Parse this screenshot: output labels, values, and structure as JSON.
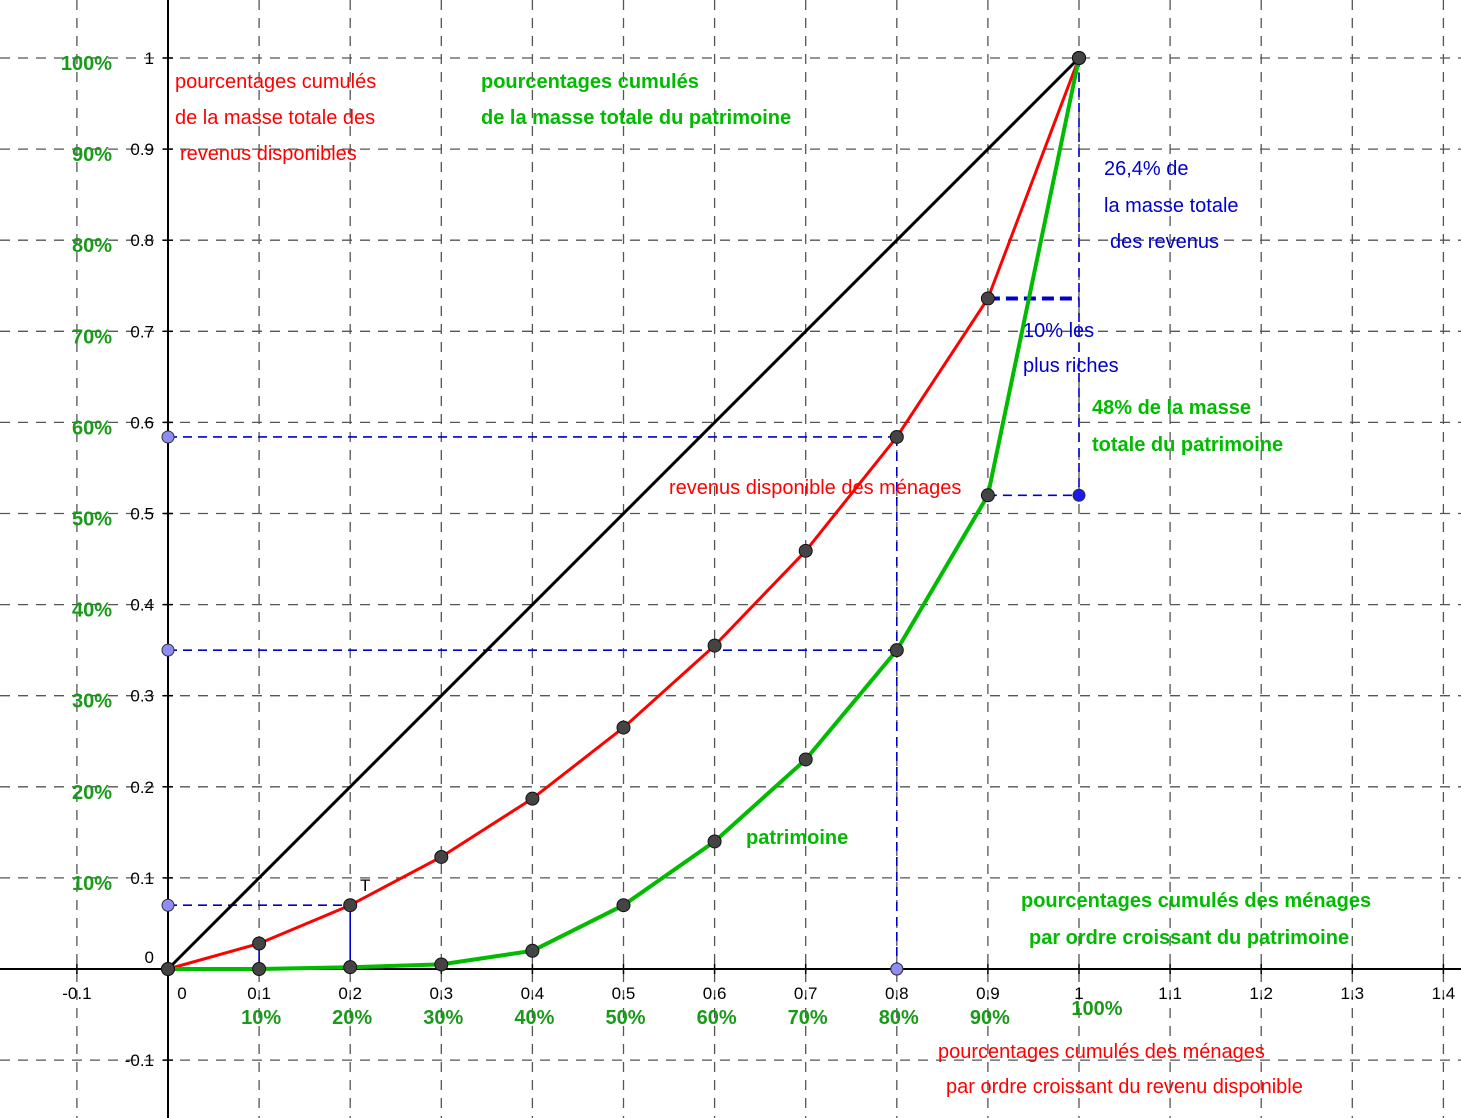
{
  "chart_data": {
    "type": "line",
    "xlim": [
      -0.1,
      1.4
    ],
    "ylim": [
      -0.1,
      1.0
    ],
    "grid": true,
    "x_ticks": [
      "-0.1",
      "0",
      "0.1",
      "0.2",
      "0.3",
      "0.4",
      "0.5",
      "0.6",
      "0.7",
      "0.8",
      "0.9",
      "1",
      "1.1",
      "1.2",
      "1.3",
      "1.4"
    ],
    "x_tick_values": [
      -0.1,
      0,
      0.1,
      0.2,
      0.3,
      0.4,
      0.5,
      0.6,
      0.7,
      0.8,
      0.9,
      1,
      1.1,
      1.2,
      1.3,
      1.4
    ],
    "y_ticks": [
      "-0.1",
      "0",
      "0.1",
      "0.2",
      "0.3",
      "0.4",
      "0.5",
      "0.6",
      "0.7",
      "0.8",
      "0.9",
      "1"
    ],
    "y_tick_values": [
      -0.1,
      0,
      0.1,
      0.2,
      0.3,
      0.4,
      0.5,
      0.6,
      0.7,
      0.8,
      0.9,
      1
    ],
    "x_pct_labels": [
      "10%",
      "20%",
      "30%",
      "40%",
      "50%",
      "60%",
      "70%",
      "80%",
      "90%",
      "100%"
    ],
    "y_pct_labels": [
      "10%",
      "20%",
      "30%",
      "40%",
      "50%",
      "60%",
      "70%",
      "80%",
      "90%",
      "100%"
    ],
    "series": [
      {
        "name": "",
        "color": "#000000",
        "x": [
          0,
          1
        ],
        "y": [
          0,
          1
        ]
      },
      {
        "name": "revenus disponible des ménages",
        "color": "#ff0000",
        "x": [
          0,
          0.1,
          0.2,
          0.3,
          0.4,
          0.5,
          0.6,
          0.7,
          0.8,
          0.9,
          1
        ],
        "y": [
          0,
          0.028,
          0.07,
          0.123,
          0.187,
          0.265,
          0.355,
          0.459,
          0.584,
          0.736,
          1
        ]
      },
      {
        "name": "patrimoine",
        "color": "#00bb00",
        "x": [
          0,
          0.1,
          0.2,
          0.3,
          0.4,
          0.5,
          0.6,
          0.7,
          0.8,
          0.9,
          1
        ],
        "y": [
          0,
          0.0,
          0.002,
          0.005,
          0.02,
          0.07,
          0.14,
          0.23,
          0.35,
          0.52,
          1
        ]
      }
    ],
    "guides": {
      "color": "#0000cc",
      "revenue_80pct": 0.584,
      "patrimoine_80pct": 0.35,
      "revenue_20pct": 0.07,
      "top10_revenue_start": 0.736,
      "top10_patrimoine_start": 0.52
    },
    "annotations": {
      "cum_revenus": [
        "pourcentages cumulés",
        "de la masse totale des",
        "revenus disponibles"
      ],
      "cum_patrimoine": [
        "pourcentages cumulés",
        "de la masse totale du patrimoine"
      ],
      "revenus_share": [
        "26,4% de",
        "la masse totale",
        "des revenus"
      ],
      "plus_riches": [
        "10% les",
        "plus riches"
      ],
      "patrimoine_share": [
        "48% de la masse",
        "totale du patrimoine"
      ],
      "revenus_label": "revenus disponible des ménages",
      "patrimoine_label": "patrimoine",
      "menages_patrimoine": [
        "pourcentages cumulés des ménages",
        "par ordre croissant du patrimoine"
      ],
      "menages_revenu": [
        "pourcentages cumulés des ménages",
        "par ordre croissant du revenu disponible"
      ],
      "point_label": "T"
    },
    "colors": {
      "revenus": "#ff0000",
      "patrimoine": "#00bb00",
      "guides": "#0000cc",
      "pct_labels": "#1a9a1a"
    }
  }
}
